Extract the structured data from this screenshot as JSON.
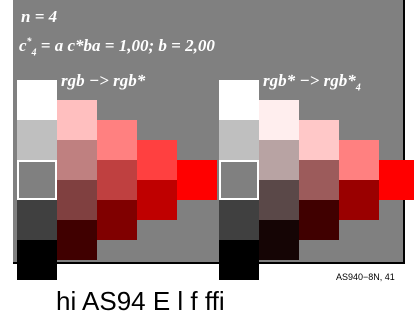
{
  "title_n": "n = 4",
  "formula_c": "c",
  "formula_sup": "*",
  "formula_sub": "4",
  "formula_rest": "= a c*ba = 1,00; b = 2,00",
  "left_label": "rgb −> rgb*",
  "right_label_main": "rgb* −> rgb*",
  "right_label_sub": "4",
  "code": "AS940−8N, 41",
  "caption": "hi   AS94  E         l   f  ffi",
  "colors": {
    "background": "#808080",
    "panel_border": "#000000",
    "outline": "#ffffff",
    "left_column_1": [
      "#ffffff",
      "#bfbfbf",
      "#808080",
      "#404040",
      "#000000"
    ],
    "left_column_2": [
      "#ffbfbf",
      "#bf8080",
      "#804040",
      "#400000"
    ],
    "left_column_3": [
      "#ff8080",
      "#bf4040",
      "#800000"
    ],
    "left_column_4": [
      "#ff4040",
      "#bf0000"
    ],
    "left_column_5": [
      "#ff0000"
    ],
    "right_column_1": [
      "#ffffff",
      "#bfbfbf",
      "#808080",
      "#404040",
      "#000000"
    ],
    "right_column_2": [
      "#ffeeee",
      "#b8a3a3",
      "#5a4848",
      "#150505"
    ],
    "right_column_3": [
      "#ffc8c8",
      "#9c5b5b",
      "#400000"
    ],
    "right_column_4": [
      "#ff8080",
      "#9a0000"
    ],
    "right_column_5": [
      "#ff0000"
    ]
  }
}
